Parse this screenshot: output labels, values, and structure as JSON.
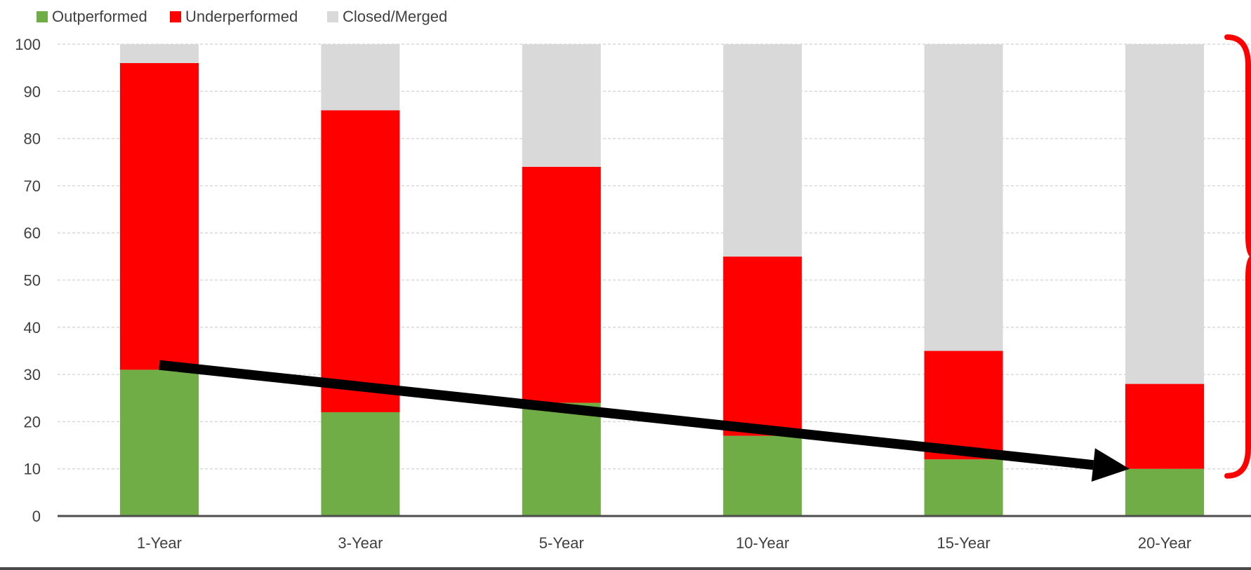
{
  "chart_data": {
    "type": "bar",
    "stacked": true,
    "categories": [
      "1-Year",
      "3-Year",
      "5-Year",
      "10-Year",
      "15-Year",
      "20-Year"
    ],
    "series": [
      {
        "name": "Outperformed",
        "color": "#70AD47",
        "values": [
          31,
          22,
          24,
          17,
          12,
          10
        ]
      },
      {
        "name": "Underperformed",
        "color": "#FF0000",
        "values": [
          65,
          64,
          50,
          38,
          23,
          18
        ]
      },
      {
        "name": "Closed/Merged",
        "color": "#D9D9D9",
        "values": [
          4,
          14,
          26,
          45,
          65,
          72
        ]
      }
    ],
    "yticks": [
      "0",
      "10",
      "20",
      "30",
      "40",
      "50",
      "60",
      "70",
      "80",
      "90",
      "100"
    ],
    "ylim": [
      0,
      100
    ],
    "grid": true,
    "legend": "top-left",
    "annotations": {
      "trend_arrow": {
        "from_category": "1-Year",
        "from_value": 32,
        "to_category": "20-Year",
        "to_value": 10,
        "color": "#000000"
      },
      "bracket": {
        "from_value": 10,
        "to_value": 100,
        "side": "right",
        "color": "#FF0000"
      }
    }
  }
}
